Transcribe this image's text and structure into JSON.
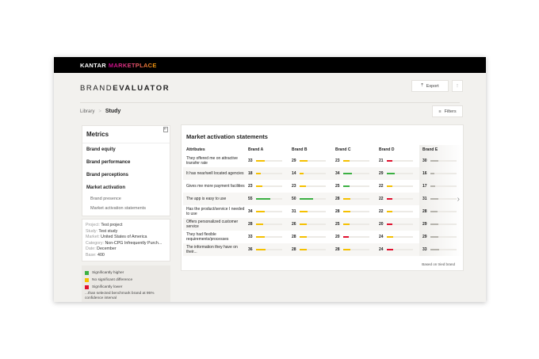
{
  "brand": {
    "kantar": "KANTAR",
    "marketplace": "MARKETPLACE"
  },
  "title": {
    "light": "BRAND",
    "bold": "EVALUATOR"
  },
  "toolbar": {
    "export": "Export",
    "more": "⋮",
    "filters": "Filters"
  },
  "breadcrumb": {
    "library": "Library",
    "sep": ">",
    "current": "Study"
  },
  "metrics": {
    "title": "Metrics",
    "items": [
      "Brand equity",
      "Brand performance",
      "Brand perceptions",
      "Market activation"
    ],
    "subitems": [
      "Brand presence",
      "Market activation statements"
    ]
  },
  "info": [
    {
      "k": "Project:",
      "v": "Test project"
    },
    {
      "k": "Study:",
      "v": "Test study"
    },
    {
      "k": "Market:",
      "v": "United States of America"
    },
    {
      "k": "Category:",
      "v": "Non-CPG Infrequently Purch..."
    },
    {
      "k": "Date:",
      "v": "December"
    },
    {
      "k": "Base:",
      "v": "400"
    }
  ],
  "legend": {
    "items": [
      {
        "label": "Significantly higher",
        "color": "#3cb043"
      },
      {
        "label": "No significant difference",
        "color": "#f5c000"
      },
      {
        "label": "Significantly lower",
        "color": "#e0102e"
      }
    ],
    "note": "...than selected benchmark brand at 95% confidence interval"
  },
  "table": {
    "title": "Market activation statements",
    "header": [
      "Attributes",
      "Brand A",
      "Brand B",
      "Brand C",
      "Brand D",
      "Brand E"
    ],
    "rows": [
      {
        "attr": "They offered me on attractive transfer rate",
        "values": [
          33,
          29,
          23,
          21,
          30
        ],
        "sig": [
          "y",
          "y",
          "y",
          "r",
          "n"
        ]
      },
      {
        "attr": "It has near/well located agencies",
        "values": [
          18,
          14,
          34,
          29,
          16
        ],
        "sig": [
          "y",
          "y",
          "g",
          "g",
          "n"
        ]
      },
      {
        "attr": "Gives me more payment facilities",
        "values": [
          23,
          23,
          25,
          22,
          17
        ],
        "sig": [
          "y",
          "y",
          "g",
          "y",
          "n"
        ]
      },
      {
        "attr": "The app is easy to use",
        "values": [
          55,
          50,
          28,
          22,
          31
        ],
        "sig": [
          "g",
          "g",
          "y",
          "r",
          "n"
        ]
      },
      {
        "attr": "Has the product/service I needed to use",
        "values": [
          34,
          31,
          28,
          22,
          28
        ],
        "sig": [
          "y",
          "y",
          "y",
          "y",
          "n"
        ]
      },
      {
        "attr": "Offers personalized customer service",
        "values": [
          28,
          26,
          25,
          20,
          29
        ],
        "sig": [
          "y",
          "y",
          "y",
          "r",
          "n"
        ]
      },
      {
        "attr": "They had flexible requirements/processes",
        "values": [
          33,
          28,
          20,
          24,
          29
        ],
        "sig": [
          "y",
          "y",
          "r",
          "y",
          "n"
        ]
      },
      {
        "attr": "The information they have on their...",
        "values": [
          36,
          28,
          28,
          24,
          33
        ],
        "sig": [
          "y",
          "y",
          "y",
          "r",
          "n"
        ]
      }
    ],
    "note": "Based on tried brand",
    "colors": {
      "g": "#3cb043",
      "y": "#f5c000",
      "r": "#e0102e",
      "n": "#b5b3ac"
    }
  }
}
